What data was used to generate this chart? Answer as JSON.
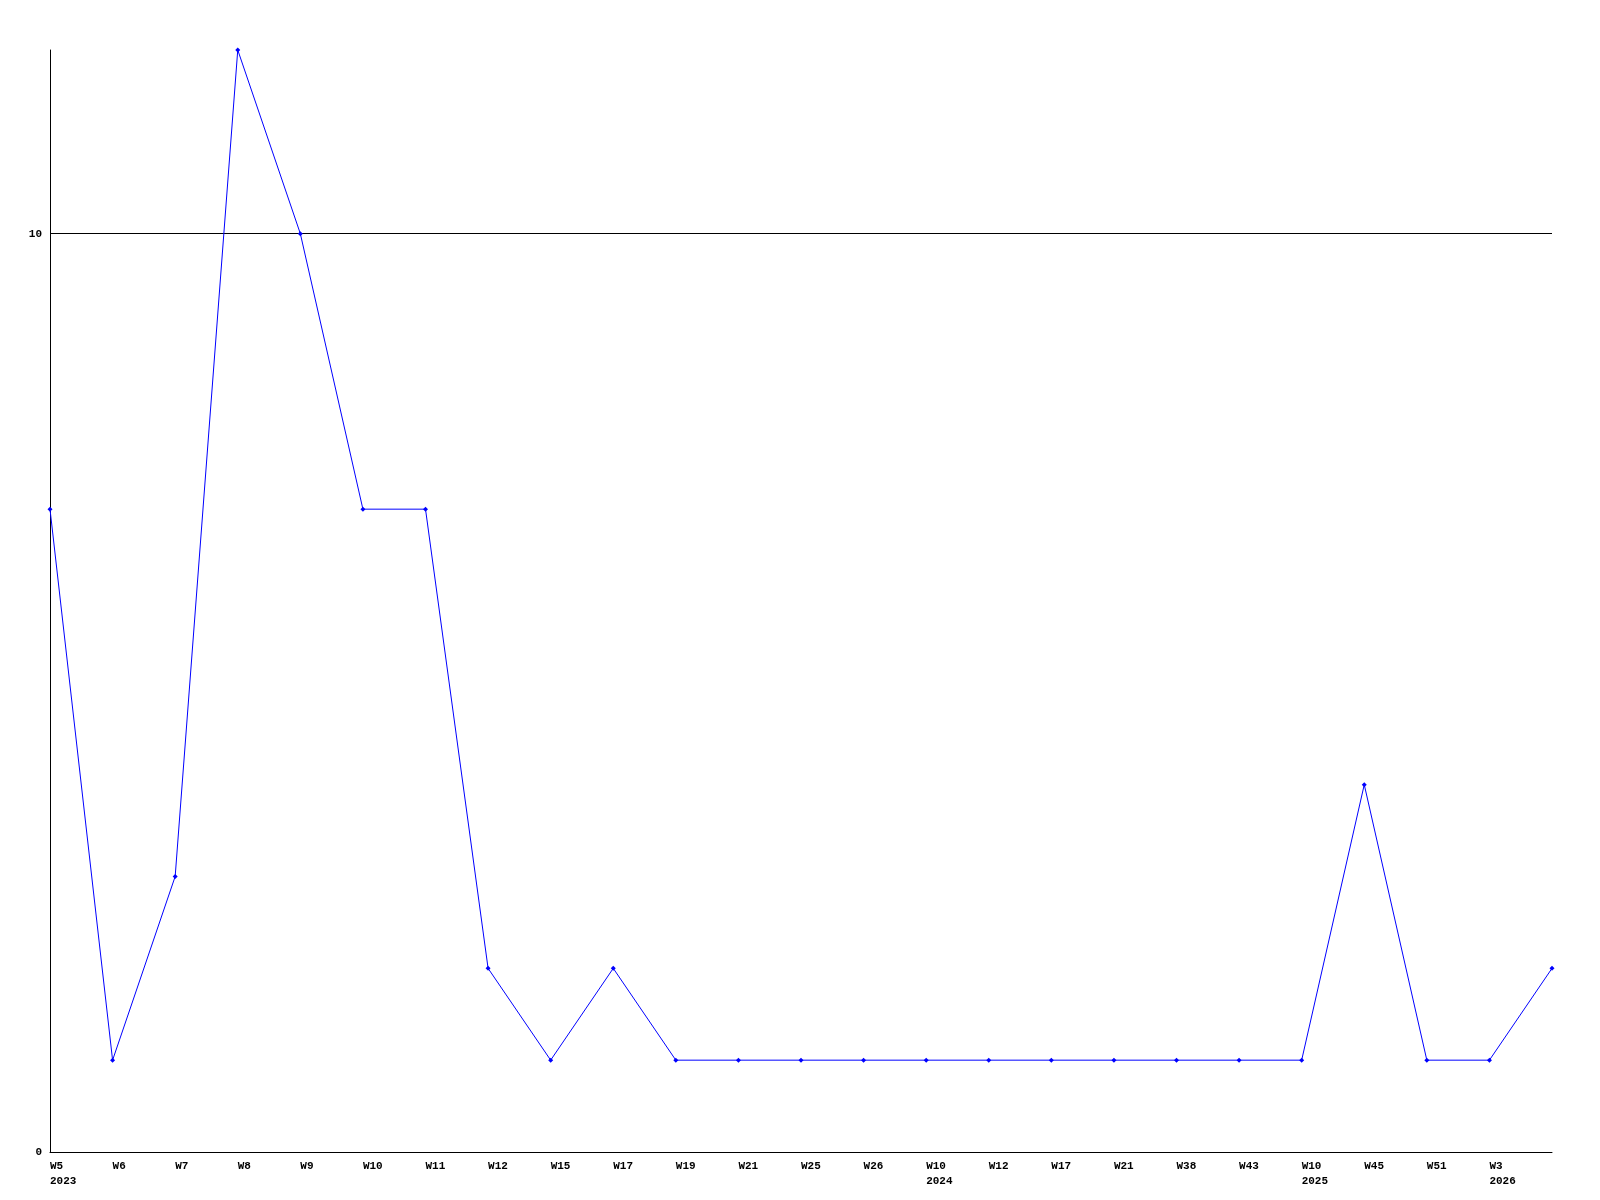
{
  "chart_data": {
    "type": "line",
    "categories": [
      "W5\n2023",
      "W6",
      "W7",
      "W8",
      "W9",
      "W10",
      "W11",
      "W12",
      "W15",
      "W17",
      "W19",
      "W21",
      "W25",
      "W26",
      "W10\n2024",
      "W12",
      "W17",
      "W21",
      "W38",
      "W43",
      "W10\n2025",
      "W45",
      "W51",
      "W3\n2026",
      null
    ],
    "series": [
      {
        "color": "#0000ff",
        "values": [
          7,
          1,
          3,
          12,
          10,
          7,
          7,
          2,
          1,
          2,
          1,
          1,
          1,
          1,
          1,
          1,
          1,
          1,
          1,
          1,
          1,
          4,
          1,
          1,
          2
        ]
      }
    ],
    "ylim": [
      0,
      12
    ],
    "yticks": [
      0,
      10
    ],
    "grid": "y",
    "marker": "diamond",
    "line_style": "solid"
  }
}
